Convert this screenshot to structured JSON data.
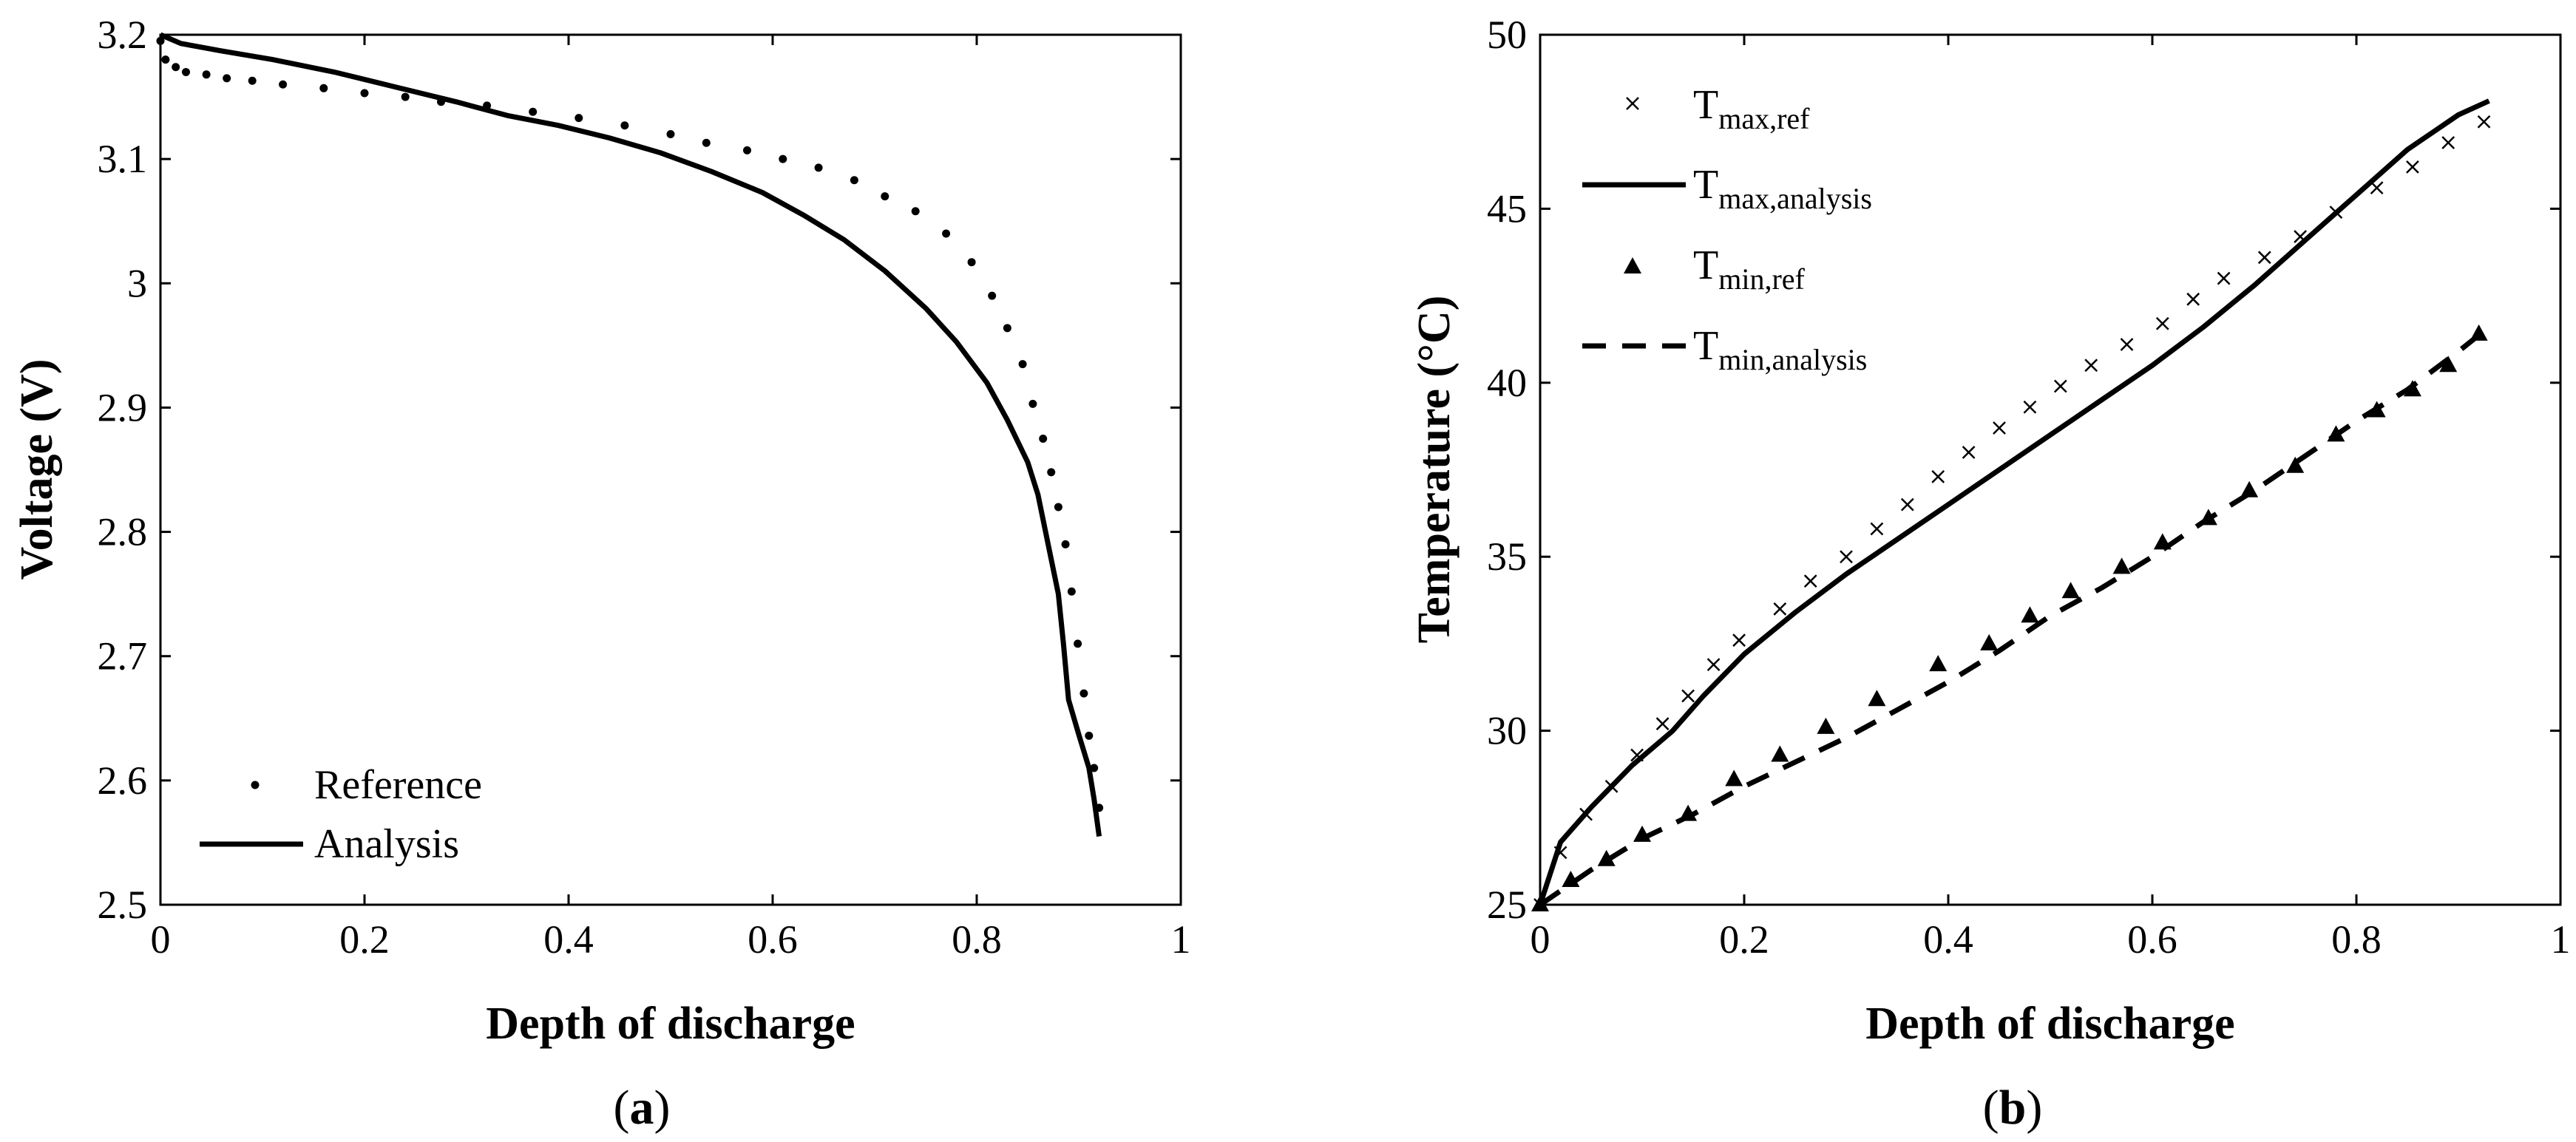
{
  "chart_data": [
    {
      "id": "a",
      "type": "line",
      "panel_label": [
        "(",
        "a",
        ")"
      ],
      "xlabel": "Depth of discharge",
      "ylabel": "Voltage (V)",
      "xlim": [
        0,
        1
      ],
      "ylim": [
        2.5,
        3.2
      ],
      "xticks": [
        0,
        0.2,
        0.4,
        0.6,
        0.8,
        1
      ],
      "xtick_labels": [
        "0",
        "0.2",
        "0.4",
        "0.6",
        "0.8",
        "1"
      ],
      "yticks": [
        2.5,
        2.6,
        2.7,
        2.8,
        2.9,
        3.0,
        3.1,
        3.2
      ],
      "ytick_labels": [
        "2.5",
        "2.6",
        "2.7",
        "2.8",
        "2.9",
        "3",
        "3.1",
        "3.2"
      ],
      "legend_position": "bottom-left",
      "series": [
        {
          "name": "Reference",
          "style": "dots",
          "x": [
            0.0,
            0.005,
            0.015,
            0.025,
            0.045,
            0.065,
            0.09,
            0.12,
            0.16,
            0.2,
            0.24,
            0.275,
            0.32,
            0.365,
            0.41,
            0.455,
            0.5,
            0.535,
            0.575,
            0.61,
            0.645,
            0.68,
            0.71,
            0.74,
            0.77,
            0.795,
            0.815,
            0.83,
            0.845,
            0.855,
            0.865,
            0.873,
            0.88,
            0.887,
            0.893,
            0.899,
            0.905,
            0.91,
            0.915,
            0.92
          ],
          "y": [
            3.195,
            3.18,
            3.174,
            3.17,
            3.168,
            3.165,
            3.163,
            3.16,
            3.157,
            3.153,
            3.15,
            3.146,
            3.143,
            3.138,
            3.133,
            3.127,
            3.12,
            3.113,
            3.107,
            3.1,
            3.093,
            3.083,
            3.07,
            3.058,
            3.04,
            3.017,
            2.99,
            2.964,
            2.935,
            2.903,
            2.875,
            2.848,
            2.82,
            2.79,
            2.752,
            2.71,
            2.67,
            2.636,
            2.61,
            2.578
          ]
        },
        {
          "name": "Analysis",
          "style": "solid",
          "x": [
            0.0,
            0.02,
            0.06,
            0.11,
            0.17,
            0.23,
            0.29,
            0.34,
            0.39,
            0.44,
            0.49,
            0.54,
            0.59,
            0.63,
            0.67,
            0.71,
            0.75,
            0.78,
            0.81,
            0.83,
            0.85,
            0.86,
            0.87,
            0.88,
            0.885,
            0.89,
            0.9,
            0.91,
            0.915,
            0.92
          ],
          "y": [
            3.2,
            3.193,
            3.187,
            3.18,
            3.17,
            3.158,
            3.146,
            3.135,
            3.127,
            3.117,
            3.105,
            3.09,
            3.073,
            3.055,
            3.035,
            3.01,
            2.98,
            2.953,
            2.92,
            2.89,
            2.856,
            2.83,
            2.79,
            2.75,
            2.71,
            2.665,
            2.637,
            2.61,
            2.585,
            2.555
          ]
        }
      ]
    },
    {
      "id": "b",
      "type": "line",
      "panel_label": [
        "(",
        "b",
        ")"
      ],
      "xlabel": "Depth of discharge",
      "ylabel": "Temperature (°C)",
      "xlim": [
        0,
        1
      ],
      "ylim": [
        25,
        50
      ],
      "xticks": [
        0,
        0.2,
        0.4,
        0.6,
        0.8,
        1
      ],
      "xtick_labels": [
        "0",
        "0.2",
        "0.4",
        "0.6",
        "0.8",
        "1"
      ],
      "yticks": [
        25,
        30,
        35,
        40,
        45,
        50
      ],
      "ytick_labels": [
        "25",
        "30",
        "35",
        "40",
        "45",
        "50"
      ],
      "legend_position": "top-left",
      "series": [
        {
          "name": "T",
          "sub": "max,ref",
          "style": "crosses",
          "x": [
            0.0,
            0.02,
            0.045,
            0.07,
            0.095,
            0.12,
            0.145,
            0.17,
            0.195,
            0.235,
            0.265,
            0.3,
            0.33,
            0.36,
            0.39,
            0.42,
            0.45,
            0.48,
            0.51,
            0.54,
            0.575,
            0.61,
            0.64,
            0.67,
            0.71,
            0.745,
            0.78,
            0.82,
            0.855,
            0.89,
            0.925
          ],
          "y": [
            25.0,
            26.5,
            27.6,
            28.4,
            29.3,
            30.2,
            31.0,
            31.9,
            32.6,
            33.5,
            34.3,
            35.0,
            35.8,
            36.5,
            37.3,
            38.0,
            38.7,
            39.3,
            39.9,
            40.5,
            41.1,
            41.7,
            42.4,
            43.0,
            43.6,
            44.2,
            44.9,
            45.6,
            46.2,
            46.9,
            47.5
          ]
        },
        {
          "name": "T",
          "sub": "max,analysis",
          "style": "solid",
          "x": [
            0.0,
            0.02,
            0.05,
            0.09,
            0.13,
            0.16,
            0.2,
            0.25,
            0.3,
            0.35,
            0.4,
            0.45,
            0.5,
            0.55,
            0.6,
            0.65,
            0.7,
            0.75,
            0.8,
            0.85,
            0.9,
            0.93
          ],
          "y": [
            25.0,
            26.8,
            27.8,
            29.0,
            30.0,
            31.0,
            32.2,
            33.4,
            34.5,
            35.5,
            36.5,
            37.5,
            38.5,
            39.5,
            40.5,
            41.6,
            42.8,
            44.1,
            45.4,
            46.7,
            47.7,
            48.1
          ]
        },
        {
          "name": "T",
          "sub": "min,ref",
          "style": "triangles",
          "x": [
            0.0,
            0.03,
            0.065,
            0.1,
            0.145,
            0.19,
            0.235,
            0.28,
            0.33,
            0.39,
            0.44,
            0.48,
            0.52,
            0.57,
            0.61,
            0.655,
            0.695,
            0.74,
            0.78,
            0.82,
            0.855,
            0.89,
            0.92
          ],
          "y": [
            25.0,
            25.7,
            26.3,
            27.0,
            27.6,
            28.6,
            29.3,
            30.1,
            30.9,
            31.9,
            32.5,
            33.3,
            34.0,
            34.7,
            35.4,
            36.1,
            36.9,
            37.6,
            38.5,
            39.2,
            39.8,
            40.5,
            41.4
          ]
        },
        {
          "name": "T",
          "sub": "min,analysis",
          "style": "dashed",
          "x": [
            0.0,
            0.05,
            0.1,
            0.15,
            0.2,
            0.25,
            0.3,
            0.35,
            0.4,
            0.45,
            0.5,
            0.55,
            0.6,
            0.65,
            0.7,
            0.75,
            0.8,
            0.85,
            0.9,
            0.93
          ],
          "y": [
            25.0,
            26.0,
            26.9,
            27.6,
            28.4,
            29.1,
            29.8,
            30.6,
            31.4,
            32.3,
            33.3,
            34.1,
            35.0,
            36.0,
            36.9,
            37.9,
            38.9,
            39.8,
            40.9,
            41.6
          ]
        }
      ]
    }
  ]
}
